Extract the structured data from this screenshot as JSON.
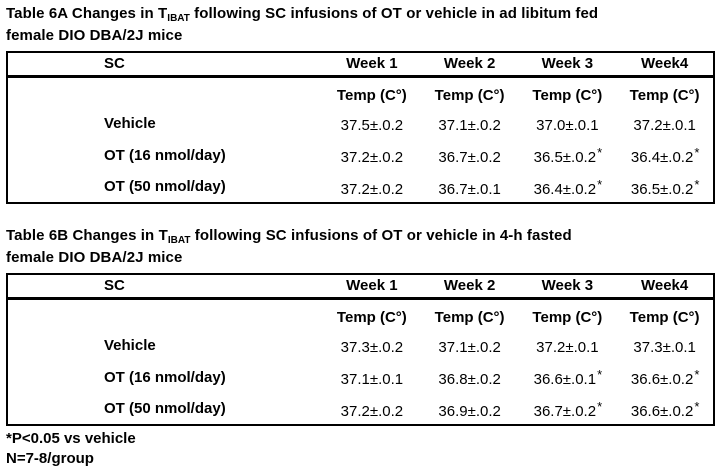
{
  "colors": {
    "text": "#000000",
    "border": "#000000",
    "background": "#ffffff"
  },
  "table_a": {
    "title_prefix": "Table 6A Changes in T",
    "title_subscript": "IBAT",
    "title_suffix": " following SC infusions of OT or vehicle in ad libitum fed",
    "title_line2": "female DIO DBA/2J mice",
    "header": {
      "group": "SC",
      "weeks": [
        "Week 1",
        "Week 2",
        "Week 3",
        "Week4"
      ]
    },
    "units": [
      "Temp (C°)",
      "Temp (C°)",
      "Temp (C°)",
      "Temp (C°)"
    ],
    "rows": [
      {
        "label": "Vehicle",
        "cells": [
          {
            "value": "37.5±.0.2"
          },
          {
            "value": "37.1±.0.2"
          },
          {
            "value": "37.0±.0.1"
          },
          {
            "value": "37.2±.0.1"
          }
        ]
      },
      {
        "label": "OT (16 nmol/day)",
        "cells": [
          {
            "value": "37.2±.0.2"
          },
          {
            "value": "36.7±.0.2"
          },
          {
            "value": "36.5±.0.2",
            "star": "*"
          },
          {
            "value": "36.4±.0.2",
            "star": "*"
          }
        ]
      },
      {
        "label": "OT (50 nmol/day)",
        "cells": [
          {
            "value": "37.2±.0.2"
          },
          {
            "value": "36.7±.0.1"
          },
          {
            "value": "36.4±.0.2",
            "star": "*"
          },
          {
            "value": "36.5±.0.2",
            "star": "*"
          }
        ]
      }
    ]
  },
  "table_b": {
    "title_prefix": "Table 6B Changes in T",
    "title_subscript": "IBAT",
    "title_suffix": " following SC infusions of OT or vehicle in 4-h fasted",
    "title_line2": "female DIO DBA/2J mice",
    "header": {
      "group": "SC",
      "weeks": [
        "Week 1",
        "Week 2",
        "Week 3",
        "Week4"
      ]
    },
    "units": [
      "Temp (C°)",
      "Temp (C°)",
      "Temp (C°)",
      "Temp (C°)"
    ],
    "rows": [
      {
        "label": "Vehicle",
        "cells": [
          {
            "value": "37.3±.0.2"
          },
          {
            "value": "37.1±.0.2"
          },
          {
            "value": "37.2±.0.1"
          },
          {
            "value": "37.3±.0.1"
          }
        ]
      },
      {
        "label": "OT (16 nmol/day)",
        "cells": [
          {
            "value": "37.1±.0.1"
          },
          {
            "value": "36.8±.0.2"
          },
          {
            "value": "36.6±.0.1",
            "star": "*"
          },
          {
            "value": "36.6±.0.2",
            "star": "*"
          }
        ]
      },
      {
        "label": "OT (50 nmol/day)",
        "cells": [
          {
            "value": "37.2±.0.2"
          },
          {
            "value": "36.9±.0.2"
          },
          {
            "value": "36.7±.0.2",
            "star": "*"
          },
          {
            "value": "36.6±.0.2",
            "star": "*"
          }
        ]
      }
    ]
  },
  "footnotes": {
    "pvalue": "*P<0.05 vs vehicle",
    "n": "N=7-8/group"
  }
}
